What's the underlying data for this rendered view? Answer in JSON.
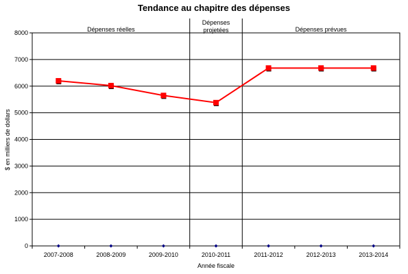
{
  "chart_data": {
    "type": "line",
    "title": "Tendance au chapitre des dépenses",
    "xlabel": "Année fiscale",
    "ylabel": "$ en milliers de dollars",
    "categories": [
      "2007-2008",
      "2008-2009",
      "2009-2010",
      "2010-2011",
      "2011-2012",
      "2012-2013",
      "2013-2014"
    ],
    "ylim": [
      0,
      8000
    ],
    "yticks": [
      0,
      1000,
      2000,
      3000,
      4000,
      5000,
      6000,
      7000,
      8000
    ],
    "grid": true,
    "series": [
      {
        "values": [
          6200,
          6020,
          5650,
          5380,
          6680,
          6680,
          6680
        ],
        "color": "#ff0000",
        "marker_color": "#ff0000"
      },
      {
        "values": [
          0,
          0,
          0,
          0,
          0,
          0,
          0
        ],
        "color": "#000080",
        "marker_color": "#000080"
      }
    ],
    "periods": [
      {
        "label": [
          "Dépenses réelles"
        ],
        "from": 0,
        "to": 3
      },
      {
        "label": [
          "Dépenses",
          "projetées"
        ],
        "from": 3,
        "to": 4
      },
      {
        "label": [
          "Dépenses prévues"
        ],
        "from": 4,
        "to": 7
      }
    ]
  }
}
